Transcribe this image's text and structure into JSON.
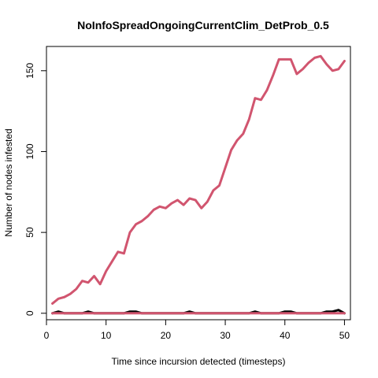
{
  "chart_data": {
    "type": "line",
    "title": "NoInfoSpreadOngoingCurrentClim_DetProb_0.5",
    "xlabel": "Time since incursion detected (timesteps)",
    "ylabel": "Number of nodes infested",
    "xlim": [
      0,
      51
    ],
    "ylim": [
      -4,
      165
    ],
    "xticks": [
      0,
      10,
      20,
      30,
      40,
      50
    ],
    "yticks": [
      0,
      50,
      100,
      150
    ],
    "grid": false,
    "legend": false,
    "x": [
      1,
      2,
      3,
      4,
      5,
      6,
      7,
      8,
      9,
      10,
      11,
      12,
      13,
      14,
      15,
      16,
      17,
      18,
      19,
      20,
      21,
      22,
      23,
      24,
      25,
      26,
      27,
      28,
      29,
      30,
      31,
      32,
      33,
      34,
      35,
      36,
      37,
      38,
      39,
      40,
      41,
      42,
      43,
      44,
      45,
      46,
      47,
      48,
      49,
      50
    ],
    "series": [
      {
        "color": "#D1556F",
        "width": 3,
        "values": [
          6,
          9,
          10,
          12,
          15,
          20,
          19,
          23,
          18,
          26,
          32,
          38,
          37,
          50,
          55,
          57,
          60,
          64,
          66,
          65,
          68,
          70,
          67,
          71,
          70,
          65,
          69,
          76,
          79,
          90,
          101,
          107,
          111,
          120,
          133,
          132,
          138,
          147,
          157,
          157,
          157,
          148,
          151,
          155,
          158,
          159,
          154,
          150,
          151,
          156
        ]
      },
      {
        "color": "#000000",
        "width": 3,
        "values": [
          0,
          1,
          0,
          0,
          0,
          0,
          1,
          0,
          0,
          0,
          0,
          0,
          0,
          1,
          1,
          0,
          0,
          0,
          0,
          0,
          0,
          0,
          0,
          1,
          0,
          0,
          0,
          0,
          0,
          0,
          0,
          0,
          0,
          0,
          1,
          0,
          0,
          0,
          0,
          1,
          1,
          0,
          0,
          0,
          0,
          0,
          1,
          1,
          2,
          0
        ]
      },
      {
        "color": "#D1556F",
        "width": 3,
        "values": [
          0,
          0,
          0,
          0,
          0,
          0,
          0,
          0,
          0,
          0,
          0,
          0,
          0,
          0,
          0,
          0,
          0,
          0,
          0,
          0,
          0,
          0,
          0,
          0,
          0,
          0,
          0,
          0,
          0,
          0,
          0,
          0,
          0,
          0,
          0,
          0,
          0,
          0,
          0,
          0,
          0,
          0,
          0,
          0,
          0,
          0,
          0,
          0,
          0,
          0
        ]
      }
    ]
  }
}
